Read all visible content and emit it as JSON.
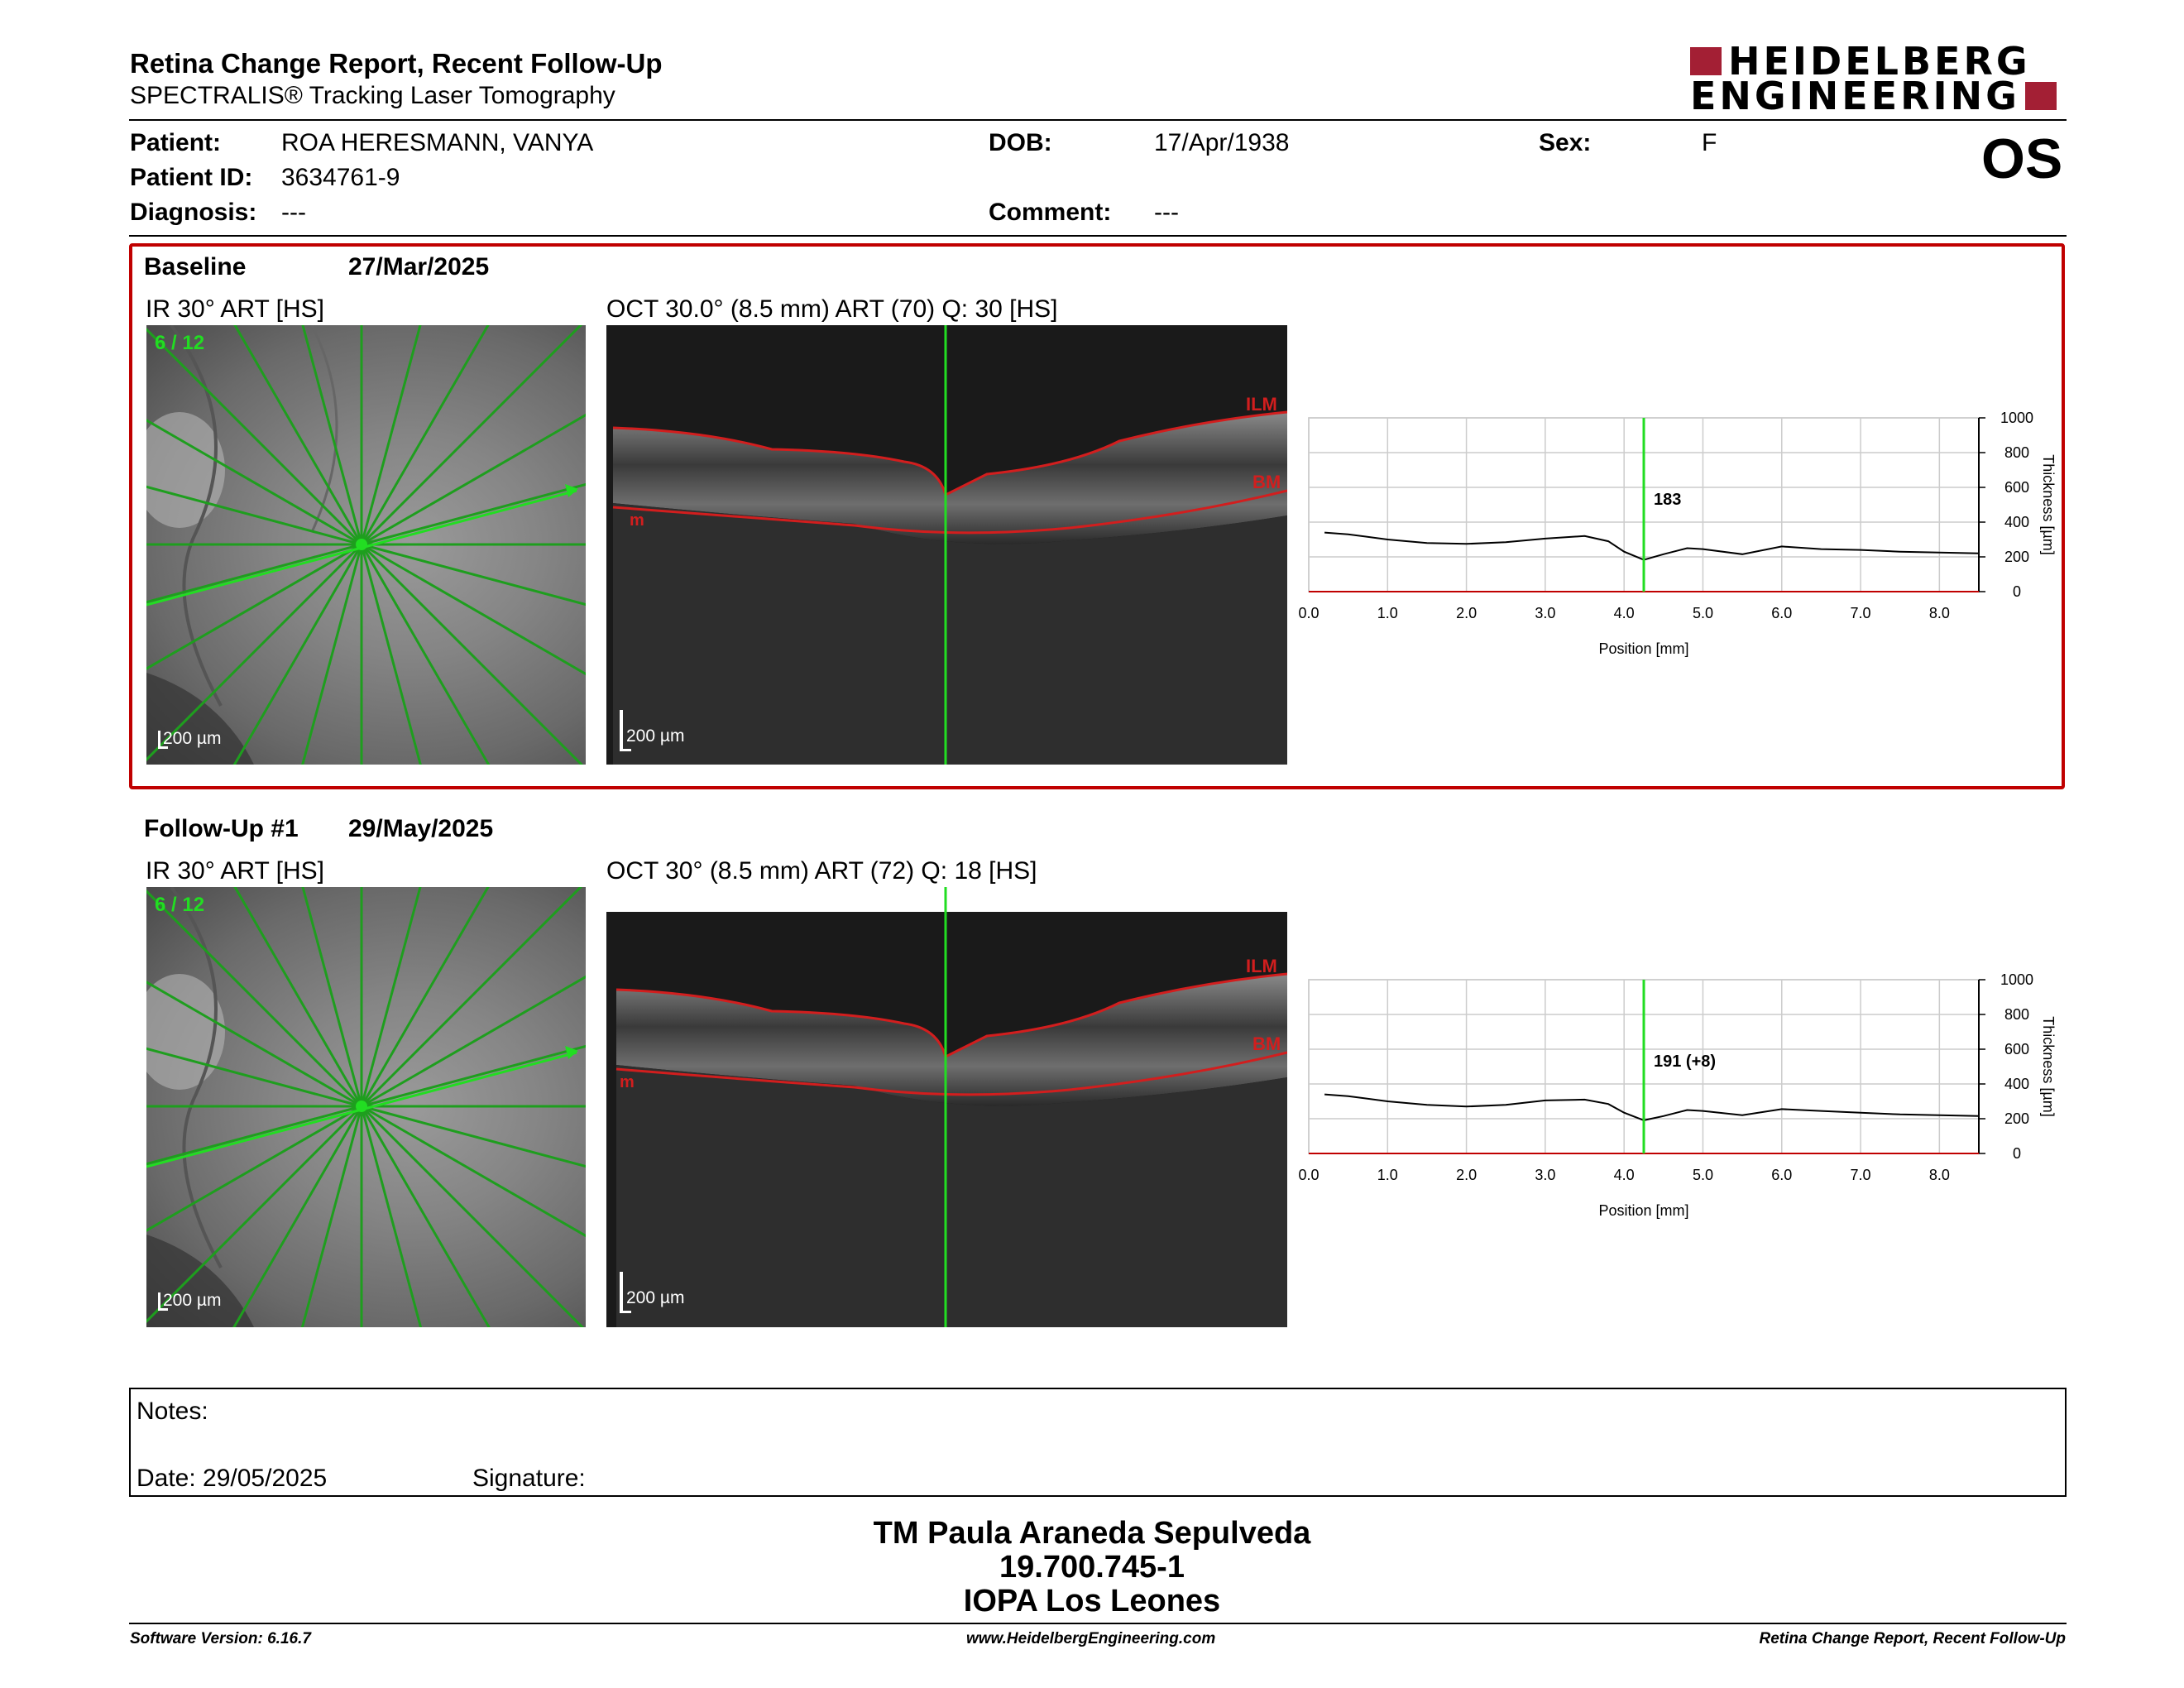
{
  "header": {
    "title": "Retina Change Report, Recent Follow-Up",
    "subtitle": "SPECTRALIS® Tracking Laser Tomography",
    "logo_line1": "HEIDELBERG",
    "logo_line2": "ENGINEERING",
    "eye": "OS"
  },
  "patient": {
    "patient_label": "Patient:",
    "patient_value": "ROA HERESMANN, VANYA",
    "id_label": "Patient ID:",
    "id_value": "3634761-9",
    "diagnosis_label": "Diagnosis:",
    "diagnosis_value": "---",
    "dob_label": "DOB:",
    "dob_value": "17/Apr/1938",
    "comment_label": "Comment:",
    "comment_value": "---",
    "sex_label": "Sex:",
    "sex_value": "F"
  },
  "baseline": {
    "label": "Baseline",
    "date": "27/Mar/2025",
    "ir_caption": "IR 30° ART [HS]",
    "oct_caption": "OCT 30.0° (8.5 mm) ART (70) Q: 30 [HS]",
    "ir_counter": "6 / 12",
    "scale": "200 µm",
    "ilm": "ILM",
    "bm": "BM",
    "m": "m",
    "marker_value": "183"
  },
  "followup": {
    "label": "Follow-Up #1",
    "date": "29/May/2025",
    "ir_caption": "IR 30° ART [HS]",
    "oct_caption": "OCT 30° (8.5 mm) ART (72) Q: 18 [HS]",
    "ir_counter": "6 / 12",
    "scale": "200 µm",
    "ilm": "ILM",
    "bm": "BM",
    "m": "m",
    "marker_value": "191 (+8)"
  },
  "chart_data": [
    {
      "type": "line",
      "xlabel": "Position [mm]",
      "ylabel": "Thickness [µm]",
      "xlim": [
        0.0,
        8.5
      ],
      "ylim": [
        0,
        1000
      ],
      "xticks": [
        "0.0",
        "1.0",
        "2.0",
        "3.0",
        "4.0",
        "5.0",
        "6.0",
        "7.0",
        "8.0"
      ],
      "yticks": [
        "0",
        "200",
        "400",
        "600",
        "800",
        "1000"
      ],
      "marker_x": 4.25,
      "marker_label": "183",
      "x": [
        0.2,
        0.5,
        1.0,
        1.5,
        2.0,
        2.5,
        3.0,
        3.5,
        3.8,
        4.0,
        4.25,
        4.5,
        4.8,
        5.0,
        5.5,
        6.0,
        6.5,
        7.0,
        7.5,
        8.0,
        8.5
      ],
      "y": [
        340,
        330,
        300,
        280,
        275,
        285,
        305,
        320,
        290,
        230,
        183,
        215,
        250,
        245,
        215,
        260,
        245,
        240,
        230,
        225,
        220
      ]
    },
    {
      "type": "line",
      "xlabel": "Position [mm]",
      "ylabel": "Thickness [µm]",
      "xlim": [
        0.0,
        8.5
      ],
      "ylim": [
        0,
        1000
      ],
      "xticks": [
        "0.0",
        "1.0",
        "2.0",
        "3.0",
        "4.0",
        "5.0",
        "6.0",
        "7.0",
        "8.0"
      ],
      "yticks": [
        "0",
        "200",
        "400",
        "600",
        "800",
        "1000"
      ],
      "marker_x": 4.25,
      "marker_label": "191 (+8)",
      "x": [
        0.2,
        0.5,
        1.0,
        1.5,
        2.0,
        2.5,
        3.0,
        3.5,
        3.8,
        4.0,
        4.25,
        4.5,
        4.8,
        5.0,
        5.5,
        6.0,
        6.5,
        7.0,
        7.5,
        8.0,
        8.5
      ],
      "y": [
        340,
        330,
        300,
        280,
        270,
        280,
        305,
        310,
        285,
        235,
        191,
        215,
        250,
        245,
        220,
        255,
        245,
        235,
        225,
        220,
        215
      ]
    }
  ],
  "notes": {
    "notes_label": "Notes:",
    "date_label": "Date: 29/05/2025",
    "signature_label": "Signature:"
  },
  "signer": {
    "name": "TM Paula Araneda Sepulveda",
    "id": "19.700.745-1",
    "org": "IOPA Los Leones"
  },
  "footer": {
    "software": "Software Version: 6.16.7",
    "url": "www.HeidelbergEngineering.com",
    "report": "Retina Change Report, Recent Follow-Up"
  },
  "colors": {
    "brand": "#a31f34",
    "highlight_box": "#c00000",
    "scan_line": "#22dd22",
    "segmentation": "#d21e1e"
  }
}
